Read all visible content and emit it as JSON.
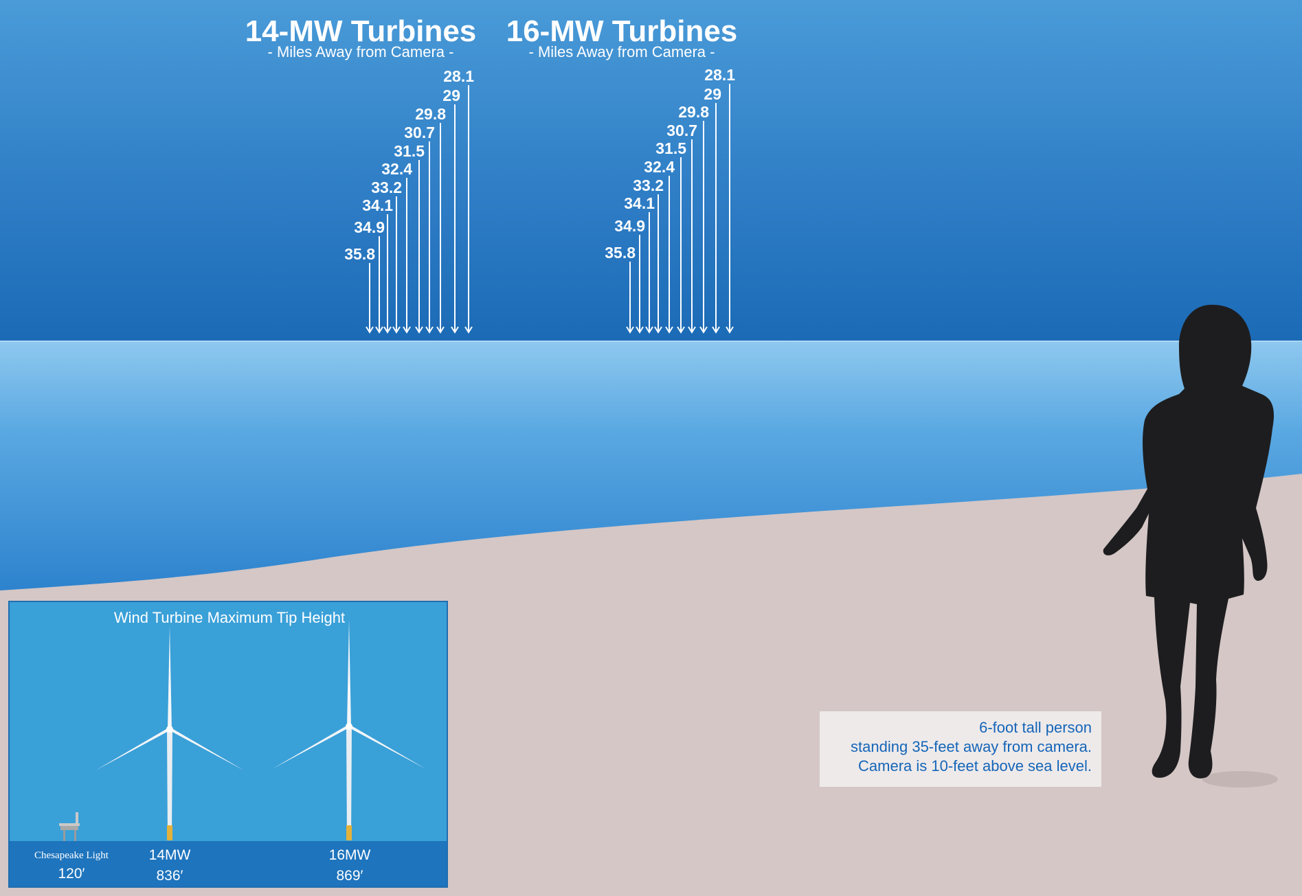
{
  "groups": [
    {
      "title": "14-MW Turbines",
      "subtitle": "- Miles Away from Camera -",
      "distances": [
        "28.1",
        "29",
        "29.8",
        "30.7",
        "31.5",
        "32.4",
        "33.2",
        "34.1",
        "34.9",
        "35.8"
      ]
    },
    {
      "title": "16-MW Turbines",
      "subtitle": "- Miles Away from Camera -",
      "distances": [
        "28.1",
        "29",
        "29.8",
        "30.7",
        "31.5",
        "32.4",
        "33.2",
        "34.1",
        "34.9",
        "35.8"
      ]
    }
  ],
  "inset": {
    "title": "Wind Turbine Maximum Tip Height",
    "items": [
      {
        "name": "Chesapeake Light",
        "height": "120′"
      },
      {
        "name": "14MW",
        "height": "836′"
      },
      {
        "name": "16MW",
        "height": "869′"
      }
    ]
  },
  "person_note": {
    "lines": [
      "6-foot tall person",
      "standing 35-feet away from camera.",
      "Camera is 10-feet above sea level."
    ]
  },
  "colors": {
    "sky_top": "#4a9bd8",
    "sky_bottom": "#1b6ab6",
    "sea_top": "#8ec8ef",
    "sea_bottom": "#2a80cc",
    "sand": "#d4c7c6",
    "person": "#1d1d1f",
    "note_text": "#1565b8"
  },
  "icons": [
    "arrow-down-icon",
    "wind-turbine-icon",
    "lighthouse-platform-icon",
    "person-silhouette-icon"
  ]
}
